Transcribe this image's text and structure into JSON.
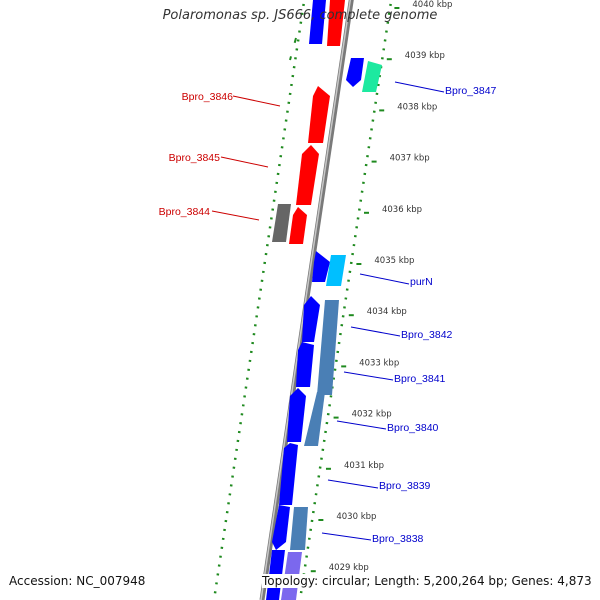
{
  "title": "Polaromonas sp. JS666, complete genome",
  "footer": {
    "accession": "Accession: NC_007948",
    "summary": "Topology: circular; Length: 5,200,264 bp; Genes: 4,873"
  },
  "colors": {
    "background": "#ffffff",
    "backbone": "#8a8a8a",
    "gc_ticks": "#1f8a1f",
    "left_labels": "#cc0000",
    "right_labels": "#0000cc",
    "red_gene": "#ff0000",
    "gray_gene": "#666666",
    "blue_gene": "#0000ff",
    "steel_gene": "#4a7fb5",
    "cyan_gene": "#00bfff",
    "teal_gene": "#1de9a0",
    "purple_gene": "#7b68ee"
  },
  "axis": {
    "unit": "kbp",
    "ticks": [
      "4040 kbp",
      "4039 kbp",
      "4038 kbp",
      "4037 kbp",
      "4036 kbp",
      "4035 kbp",
      "4034 kbp",
      "4033 kbp",
      "4032 kbp",
      "4031 kbp",
      "4030 kbp",
      "4029 kbp"
    ]
  },
  "labels": {
    "left": [
      "Bpro_3846",
      "Bpro_3845",
      "Bpro_3844"
    ],
    "right": [
      "Bpro_3847",
      "purN",
      "Bpro_3842",
      "Bpro_3841",
      "Bpro_3840",
      "Bpro_3839",
      "Bpro_3838"
    ]
  }
}
